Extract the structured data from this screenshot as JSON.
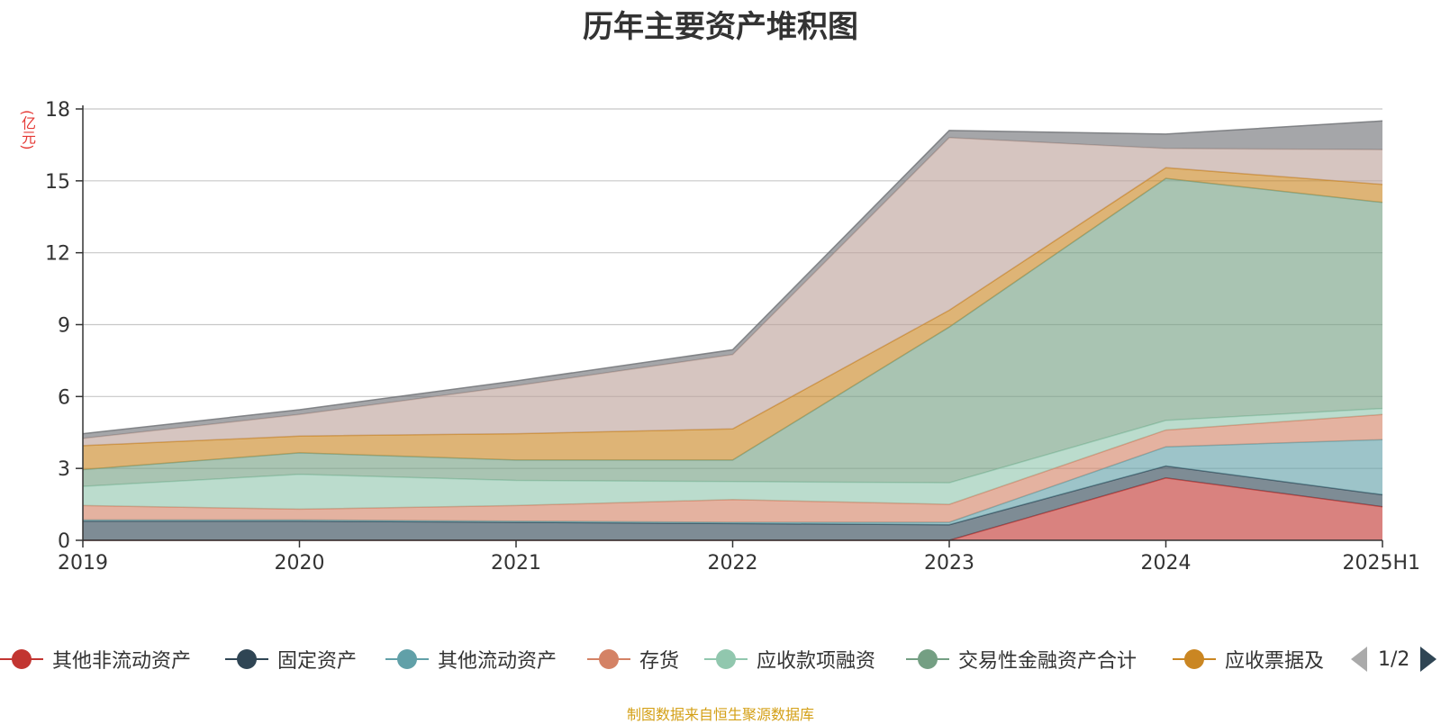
{
  "chart_data": {
    "type": "area",
    "stacked": true,
    "title": "历年主要资产堆积图",
    "unit": "(亿元)",
    "categories": [
      "2019",
      "2020",
      "2021",
      "2022",
      "2023",
      "2024",
      "2025H1"
    ],
    "ylim": [
      0,
      18
    ],
    "yticks": [
      "0",
      "3",
      "6",
      "9",
      "12",
      "15",
      "18"
    ],
    "grid": true,
    "legend_position": "bottom",
    "series": [
      {
        "name": "其他非流动资产",
        "color": "#c23531",
        "values": [
          0,
          0,
          0,
          0,
          0,
          2.6,
          1.4
        ]
      },
      {
        "name": "固定资产",
        "color": "#2f4554",
        "values": [
          0.8,
          0.8,
          0.75,
          0.7,
          0.65,
          0.5,
          0.5
        ]
      },
      {
        "name": "其他流动资产",
        "color": "#61a0a8",
        "values": [
          0.05,
          0.05,
          0.05,
          0.05,
          0.1,
          0.8,
          2.3
        ]
      },
      {
        "name": "存货",
        "color": "#d48265",
        "values": [
          0.6,
          0.45,
          0.65,
          0.95,
          0.75,
          0.7,
          1.05
        ]
      },
      {
        "name": "应收款项融资",
        "color": "#91c7ae",
        "values": [
          0.8,
          1.45,
          1.05,
          0.75,
          0.9,
          0.4,
          0.25
        ]
      },
      {
        "name": "交易性金融资产合计",
        "color": "#749f83",
        "values": [
          0.7,
          0.9,
          0.85,
          0.9,
          6.5,
          10.1,
          8.6
        ]
      },
      {
        "name": "应收票据及",
        "color": "#ca8622",
        "values": [
          1.0,
          0.7,
          1.1,
          1.3,
          0.7,
          0.45,
          0.75
        ]
      },
      {
        "name": "",
        "color": "#bda29a",
        "values": [
          0.3,
          0.9,
          2.0,
          3.1,
          7.2,
          0.8,
          1.45
        ]
      },
      {
        "name": "",
        "color": "#6e7074",
        "values": [
          0.2,
          0.2,
          0.2,
          0.2,
          0.3,
          0.6,
          1.2
        ]
      }
    ]
  },
  "legend": {
    "page_text": "1/2"
  },
  "source": "制图数据来自恒生聚源数据库"
}
